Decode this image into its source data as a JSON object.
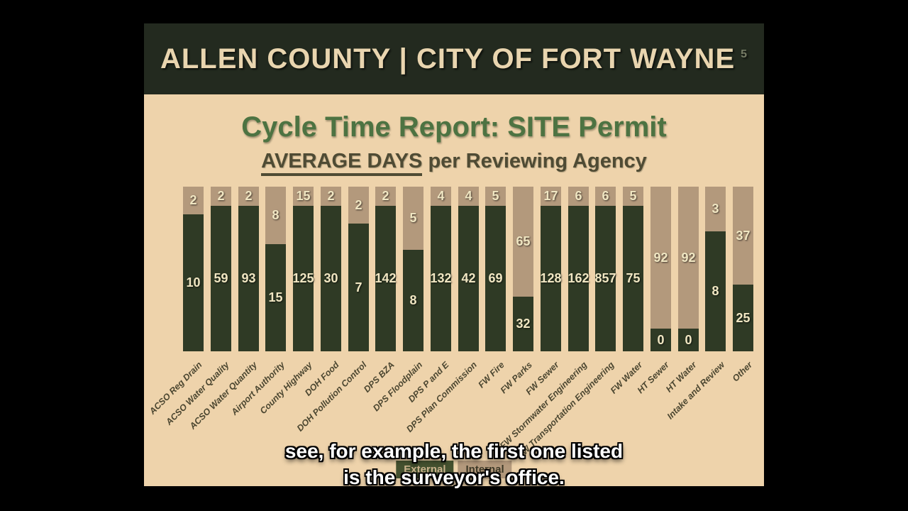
{
  "header": {
    "title": "ALLEN COUNTY | CITY OF FORT WAYNE",
    "slide_number": "5"
  },
  "chart": {
    "title": "Cycle Time Report: SITE Permit",
    "subtitle_underlined": "AVERAGE DAYS",
    "subtitle_rest": " per Reviewing Agency"
  },
  "chart_data": {
    "type": "bar",
    "stacking": "percent",
    "title": "Cycle Time Report: SITE Permit",
    "subtitle": "AVERAGE DAYS per Reviewing Agency",
    "unit": "average days",
    "legend_position": "bottom",
    "grid": false,
    "categories": [
      "ACSO Reg Drain",
      "ACSO Water Quality",
      "ACSO Water Quantity",
      "Airport Authority",
      "County Highway",
      "DOH Food",
      "DOH Pollution Control",
      "DPS BZA",
      "DPS Floodplain",
      "DPS P and E",
      "DPS Plan Commission",
      "FW Fire",
      "FW Parks",
      "FW Sewer",
      "FW Stormwater Engineering",
      "FW Transportation Engineering",
      "FW Water",
      "HT Sewer",
      "HT Water",
      "Intake and Review",
      "Other"
    ],
    "series": [
      {
        "name": "External",
        "position": "bottom",
        "color": "#2f3a25",
        "values": [
          10,
          59,
          93,
          15,
          125,
          30,
          7,
          142,
          8,
          132,
          42,
          69,
          32,
          128,
          162,
          857,
          75,
          0,
          0,
          8,
          25
        ]
      },
      {
        "name": "Internal",
        "position": "top",
        "color": "#b3997c",
        "values": [
          2,
          2,
          2,
          8,
          15,
          2,
          2,
          2,
          5,
          4,
          4,
          5,
          65,
          17,
          6,
          6,
          5,
          92,
          92,
          3,
          37
        ]
      }
    ]
  },
  "captions": {
    "line1": "see, for example, the first one listed",
    "line2": "is the surveyor's office."
  },
  "colors": {
    "page_background": "#000000",
    "slide_background": "#eed3ab",
    "header_band": "#232a1f",
    "header_text": "#e9d5af",
    "title_green": "#4d7342",
    "subtitle_olive": "#4f4b34",
    "bar_external": "#2f3a25",
    "bar_internal": "#b3997c",
    "bar_value_text": "#f0e6c2",
    "axis_label_text": "#4b4630",
    "caption_text": "#ffffff"
  }
}
